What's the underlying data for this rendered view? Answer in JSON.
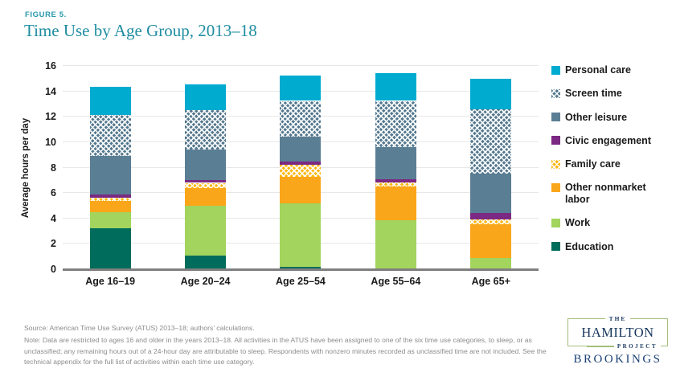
{
  "figure_label": "FIGURE 5.",
  "title": "Time Use by Age Group, 2013–18",
  "chart_data": {
    "type": "bar",
    "stacked": true,
    "title": "Time Use by Age Group, 2013–18",
    "xlabel": "",
    "ylabel": "Average hours per day",
    "ylim": [
      0,
      16
    ],
    "ytick_step": 2,
    "grid": true,
    "legend_position": "right",
    "categories": [
      "Age 16–19",
      "Age 20–24",
      "Age 25–54",
      "Age 55–64",
      "Age 65+"
    ],
    "series": [
      {
        "name": "Education",
        "color": "#006c5b",
        "pattern": "none",
        "values": [
          3.2,
          1.1,
          0.2,
          0.05,
          0.05
        ]
      },
      {
        "name": "Work",
        "color": "#a2d45e",
        "pattern": "none",
        "values": [
          1.3,
          3.9,
          5.0,
          3.8,
          0.85
        ]
      },
      {
        "name": "Other nonmarket labor",
        "color": "#faa61a",
        "pattern": "none",
        "values": [
          0.85,
          1.4,
          2.05,
          2.65,
          2.65
        ]
      },
      {
        "name": "Family care",
        "color": "#fdb714",
        "pattern": "crosshatch",
        "values": [
          0.3,
          0.4,
          0.95,
          0.3,
          0.4
        ]
      },
      {
        "name": "Civic engagement",
        "color": "#7b2982",
        "pattern": "none",
        "values": [
          0.25,
          0.2,
          0.25,
          0.3,
          0.5
        ]
      },
      {
        "name": "Other leisure",
        "color": "#5a7e94",
        "pattern": "none",
        "values": [
          3.0,
          2.4,
          2.0,
          2.5,
          3.1
        ]
      },
      {
        "name": "Screen time",
        "color": "#54788e",
        "pattern": "crosshatch",
        "values": [
          3.25,
          3.15,
          2.8,
          3.65,
          5.05
        ]
      },
      {
        "name": "Personal care",
        "color": "#00abd0",
        "pattern": "none",
        "values": [
          2.2,
          2.0,
          2.0,
          2.2,
          2.4
        ]
      }
    ],
    "bar_totals": [
      14.35,
      14.55,
      15.25,
      15.45,
      15.0
    ]
  },
  "footer": {
    "source": "Source: American Time Use Survey (ATUS) 2013–18; authors’ calculations.",
    "note": "Note: Data are restricted to ages 16 and older in the years 2013–18. All activities in the ATUS have been assigned to one of the six time use categories, to sleep, or as unclassified; any remaining hours out of a 24-hour day are attributable to sleep. Respondents with nonzero minutes recorded as unclassified time are not included. See the technical appendix for the full list of activities within each time use category."
  },
  "logo": {
    "the": "THE",
    "hamilton": "HAMILTON",
    "project": "PROJECT",
    "brookings": "BROOKINGS"
  }
}
